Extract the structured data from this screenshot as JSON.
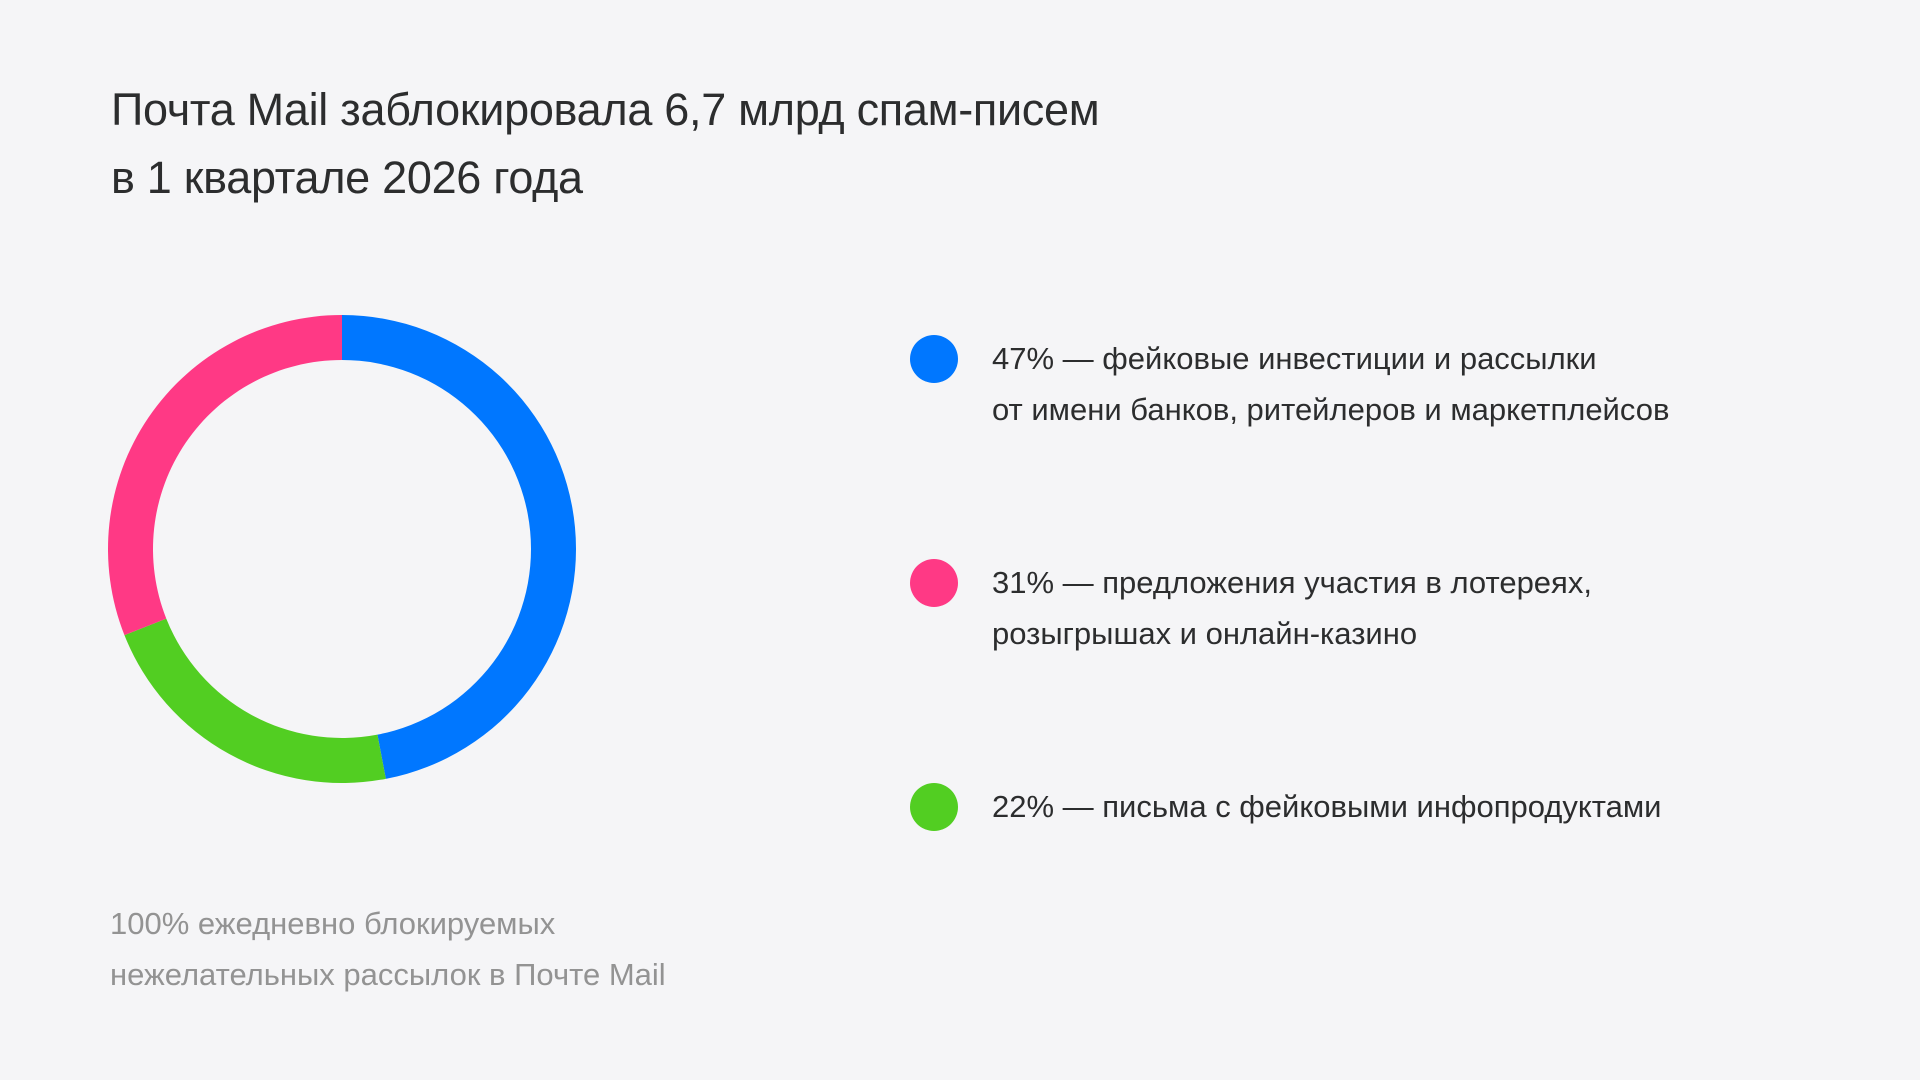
{
  "header": {
    "title_lines": [
      "Почта Mail заблокировала 6,7 млрд спам-писем",
      "в 1 квартале 2026 года"
    ]
  },
  "legend": {
    "items": [
      {
        "color": "#0077FF",
        "lines": [
          "47% — фейковые инвестиции и рассылки",
          "от имени банков, ритейлеров и маркетплейсов"
        ]
      },
      {
        "color": "#FF3985",
        "lines": [
          "31% — предложения участия в лотереях,",
          "розыгрышах и онлайн-казино"
        ]
      },
      {
        "color": "#52CE22",
        "lines": [
          "22% — письма с фейковыми инфопродуктами"
        ]
      }
    ]
  },
  "footnote": {
    "lines": [
      "100% ежедневно блокируемых",
      "нежелательных рассылок в Почте Mail"
    ]
  },
  "chart_data": {
    "type": "pie",
    "subtype": "donut",
    "title": "Почта Mail заблокировала 6,7 млрд спам-писем в 1 квартале 2026 года",
    "categories": [
      "фейковые инвестиции и рассылки от имени банков, ритейлеров и маркетплейсов",
      "письма с фейковыми инфопродуктами",
      "предложения участия в лотереях, розыгрышах и онлайн-казино"
    ],
    "values": [
      47,
      22,
      31
    ],
    "unit": "%",
    "colors": [
      "#0077FF",
      "#52CE22",
      "#FF3985"
    ],
    "start_angle_deg": 0,
    "direction": "clockwise",
    "legend_position": "right",
    "note": "100% ежедневно блокируемых нежелательных рассылок в Почте Mail"
  }
}
